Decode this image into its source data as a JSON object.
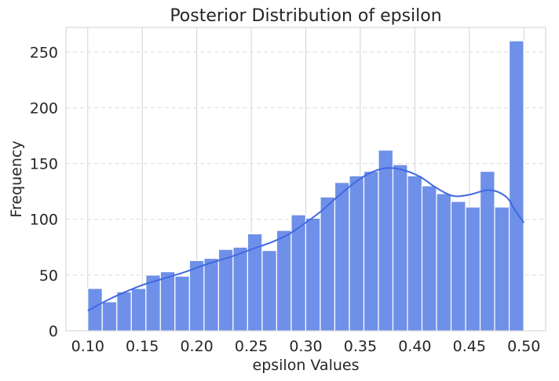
{
  "chart_data": {
    "type": "bar",
    "title": "Posterior Distribution of epsilon",
    "xlabel": "epsilon Values",
    "ylabel": "Frequency",
    "xlim": [
      0.08,
      0.52
    ],
    "ylim": [
      0,
      272
    ],
    "xticks": [
      "0.10",
      "0.15",
      "0.20",
      "0.25",
      "0.30",
      "0.35",
      "0.40",
      "0.45",
      "0.50"
    ],
    "xtick_values": [
      0.1,
      0.15,
      0.2,
      0.25,
      0.3,
      0.35,
      0.4,
      0.45,
      0.5
    ],
    "yticks": [
      "0",
      "50",
      "100",
      "150",
      "200",
      "250"
    ],
    "ytick_values": [
      0,
      50,
      100,
      150,
      200,
      250
    ],
    "bin_start": 0.1,
    "bin_width": 0.01333,
    "counts": [
      38,
      26,
      35,
      38,
      50,
      53,
      49,
      63,
      65,
      73,
      75,
      87,
      72,
      90,
      104,
      101,
      120,
      133,
      139,
      143,
      162,
      149,
      139,
      130,
      123,
      116,
      111,
      143,
      111,
      260
    ],
    "kde": [
      [
        0.1,
        18
      ],
      [
        0.115,
        26
      ],
      [
        0.13,
        33
      ],
      [
        0.15,
        41
      ],
      [
        0.17,
        47
      ],
      [
        0.19,
        53
      ],
      [
        0.21,
        60
      ],
      [
        0.23,
        66
      ],
      [
        0.25,
        73
      ],
      [
        0.27,
        80
      ],
      [
        0.285,
        87
      ],
      [
        0.3,
        97
      ],
      [
        0.315,
        108
      ],
      [
        0.33,
        121
      ],
      [
        0.345,
        133
      ],
      [
        0.36,
        142
      ],
      [
        0.375,
        146
      ],
      [
        0.39,
        144
      ],
      [
        0.405,
        138
      ],
      [
        0.42,
        128
      ],
      [
        0.435,
        121
      ],
      [
        0.45,
        122
      ],
      [
        0.465,
        126
      ],
      [
        0.475,
        125
      ],
      [
        0.485,
        119
      ],
      [
        0.492,
        108
      ],
      [
        0.5,
        97
      ]
    ],
    "grid": true,
    "colors": {
      "bar_fill": "#6f90e8",
      "bar_edge": "#ffffff",
      "kde_line": "#4169e1",
      "grid_vertical": "#d3d3d3",
      "grid_horizontal": "#dcdcdc",
      "axes_border": "#d0d0d0"
    }
  }
}
